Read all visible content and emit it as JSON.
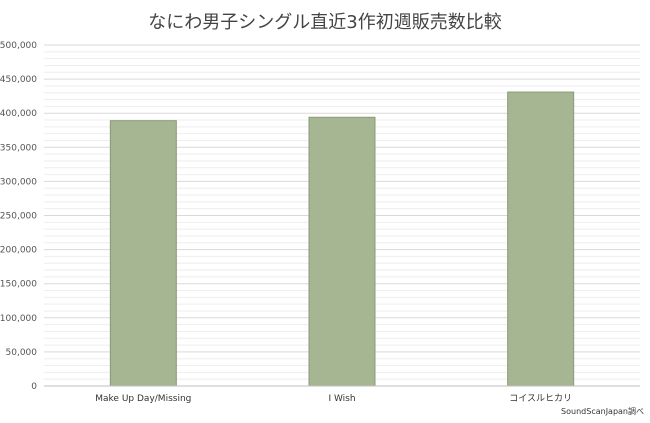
{
  "chart_data": {
    "type": "bar",
    "title": "なにわ男子シングル直近3作初週販売数比較",
    "categories": [
      "Make Up Day/Missing",
      "I Wish",
      "コイスルヒカリ"
    ],
    "values": [
      389000,
      394000,
      431000
    ],
    "xlabel": "",
    "ylabel": "",
    "ylim": [
      0,
      500000
    ],
    "yticks": [
      "0",
      "50,000",
      "100,000",
      "150,000",
      "200,000",
      "250,000",
      "300,000",
      "350,000",
      "400,000",
      "450,000",
      "500,000"
    ],
    "grid": true,
    "colors": {
      "bar_fill": "#a7b692",
      "bar_stroke": "#8a9a76",
      "major_grid": "#d9d9d9",
      "minor_grid": "#eeeeee"
    }
  },
  "source_note": "SoundScanJapan調べ"
}
